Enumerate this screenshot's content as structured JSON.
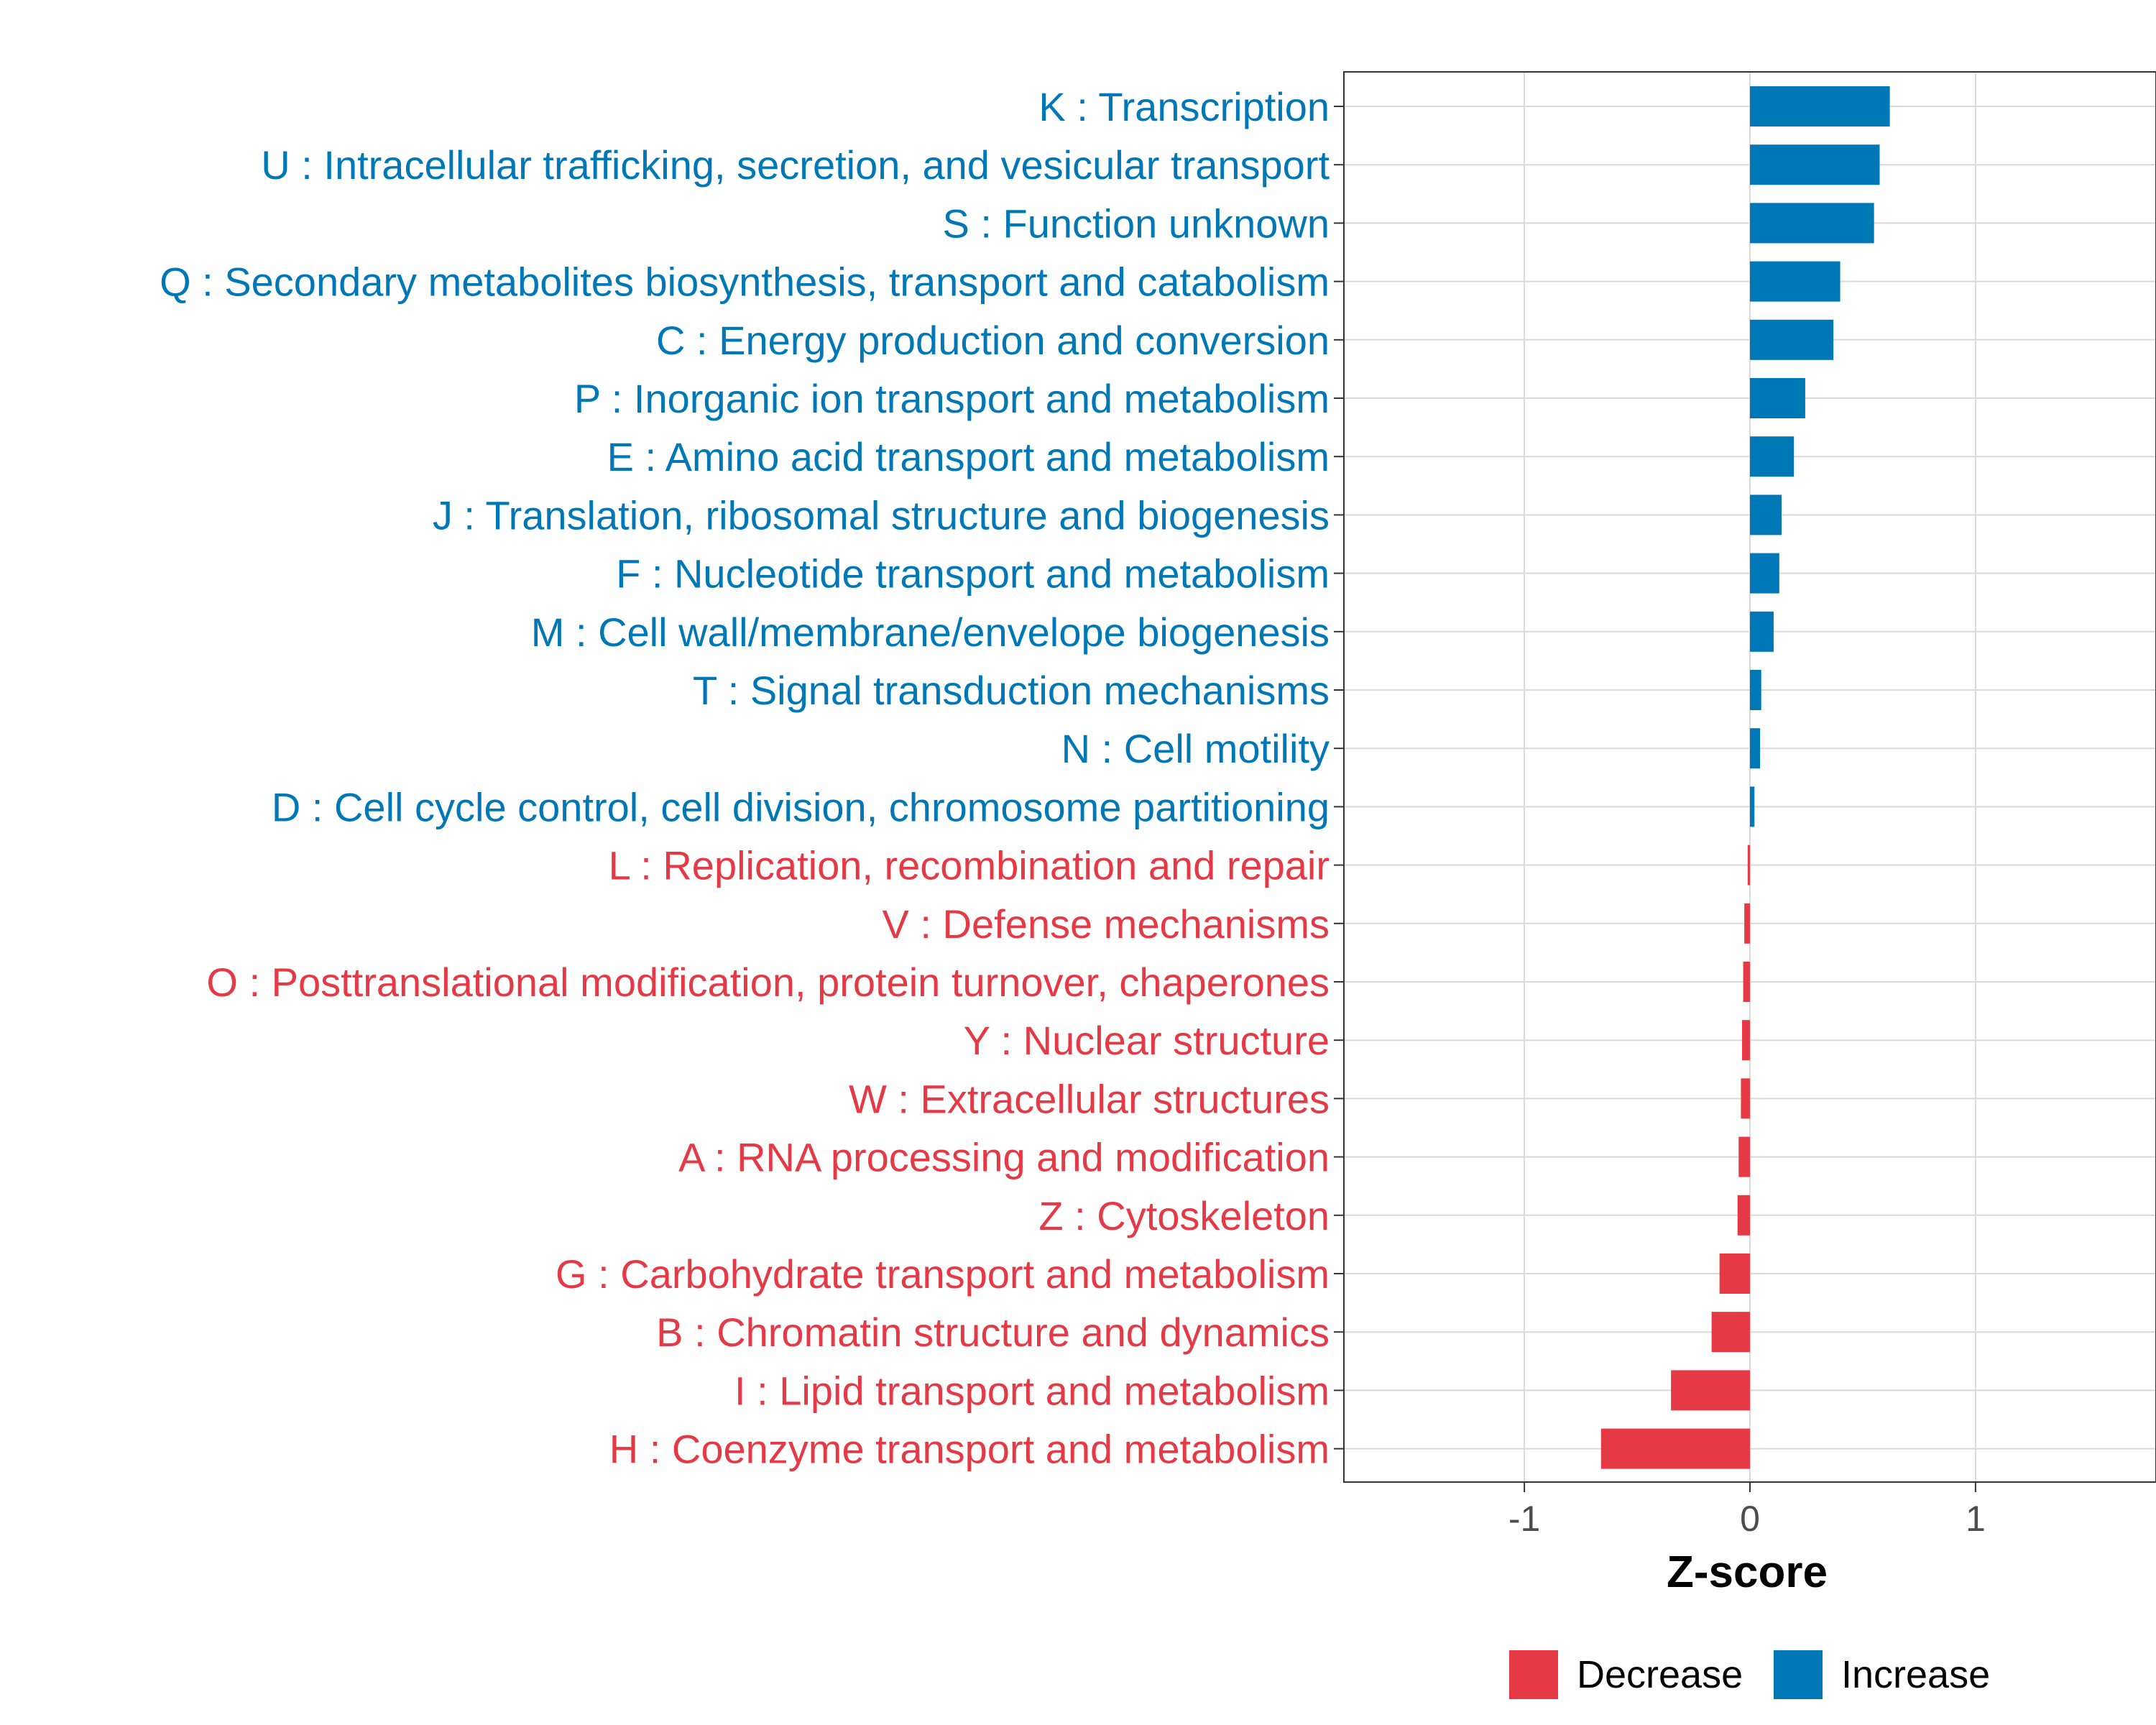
{
  "chart_data": {
    "type": "bar",
    "orientation": "horizontal",
    "categories": [
      "K : Transcription",
      "U : Intracellular trafficking, secretion, and vesicular transport",
      "S : Function unknown",
      "Q : Secondary metabolites biosynthesis, transport and catabolism",
      "C : Energy production and conversion",
      "P : Inorganic ion transport and metabolism",
      "E : Amino acid transport and metabolism",
      "J : Translation, ribosomal structure and biogenesis",
      "F : Nucleotide transport and metabolism",
      "M : Cell wall/membrane/envelope biogenesis",
      "T : Signal transduction mechanisms",
      "N : Cell motility",
      "D : Cell cycle control, cell division, chromosome partitioning",
      "L : Replication, recombination and repair",
      "V : Defense mechanisms",
      "O : Posttranslational modification, protein turnover, chaperones",
      "Y : Nuclear structure",
      "W : Extracellular structures",
      "A : RNA processing and modification",
      "Z : Cytoskeleton",
      "G : Carbohydrate transport and metabolism",
      "B : Chromatin structure and dynamics",
      "I : Lipid transport and metabolism",
      "H : Coenzyme transport and metabolism"
    ],
    "values": [
      0.62,
      0.575,
      0.55,
      0.4,
      0.37,
      0.245,
      0.195,
      0.14,
      0.13,
      0.105,
      0.05,
      0.045,
      0.02,
      -0.01,
      -0.025,
      -0.03,
      -0.035,
      -0.04,
      -0.05,
      -0.055,
      -0.135,
      -0.17,
      -0.35,
      -0.66
    ],
    "groups": [
      "Increase",
      "Increase",
      "Increase",
      "Increase",
      "Increase",
      "Increase",
      "Increase",
      "Increase",
      "Increase",
      "Increase",
      "Increase",
      "Increase",
      "Increase",
      "Decrease",
      "Decrease",
      "Decrease",
      "Decrease",
      "Decrease",
      "Decrease",
      "Decrease",
      "Decrease",
      "Decrease",
      "Decrease",
      "Decrease"
    ],
    "xlabel": "Z-score",
    "ylabel": "",
    "xlim": [
      -1.8,
      1.8
    ],
    "xticks": [
      -1,
      0,
      1
    ],
    "xtick_labels": [
      "-1",
      "0",
      "1"
    ],
    "grid": true,
    "legend": {
      "position": "bottom",
      "entries": [
        {
          "label": "Decrease",
          "color": "#E63946"
        },
        {
          "label": "Increase",
          "color": "#0077B6"
        }
      ]
    }
  },
  "colors": {
    "increase": "#0077B6",
    "decrease": "#E63946",
    "grid": "#D9D9D9",
    "axis_text": "#4D4D4D"
  }
}
